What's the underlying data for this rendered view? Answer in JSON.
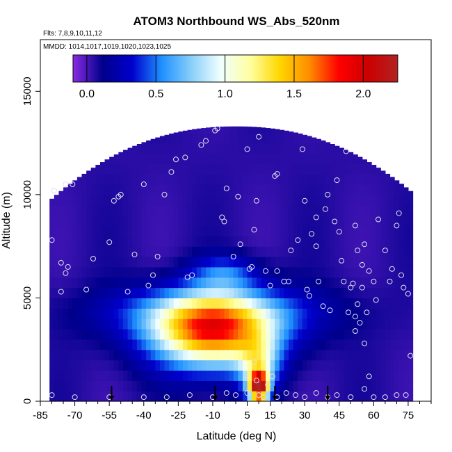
{
  "chart_data": {
    "type": "heatmap",
    "title": "ATOM3 Northbound WS_Abs_520nm",
    "flights_label": "Flts: 7,8,9,10,11,12",
    "dates_label": "MMDD: 1014,1017,1019,1020,1023,1025",
    "xlabel": "Latitude (deg N)",
    "ylabel": "Altitude (m)",
    "xlim": [
      -85,
      85
    ],
    "ylim": [
      0,
      17500
    ],
    "x_ticks": [
      -85,
      -70,
      -55,
      -40,
      -25,
      -10,
      5,
      15,
      30,
      45,
      60,
      75
    ],
    "x_minor_step": 5,
    "y_ticks": [
      0,
      5000,
      10000,
      15000
    ],
    "colorbar": {
      "range": [
        -0.1,
        2.25
      ],
      "ticks": [
        0.0,
        0.5,
        1.0,
        1.5,
        2.0
      ],
      "tick_labels": [
        "0.0",
        "0.5",
        "1.0",
        "1.5",
        "2.0"
      ],
      "colors": [
        "#8A2BE2",
        "#00008B",
        "#0000CD",
        "#1E90FF",
        "#87CEFA",
        "#F0FFFF",
        "#FFFFA0",
        "#FFD700",
        "#FF8C00",
        "#FF0000",
        "#CC0000",
        "#B22222"
      ]
    },
    "background_value": 0.05,
    "plumes": [
      {
        "lat": -10,
        "alt": 3300,
        "sx": 18,
        "sy": 1200,
        "peak": 1.55
      },
      {
        "lat": -10,
        "alt": 4300,
        "sx": 30,
        "sy": 900,
        "peak": 0.55
      },
      {
        "lat": 10,
        "alt": 700,
        "sx": 3,
        "sy": 500,
        "peak": 2.1
      },
      {
        "lat": 10,
        "alt": 1800,
        "sx": 6,
        "sy": 900,
        "peak": 0.7
      },
      {
        "lat": -5,
        "alt": 6200,
        "sx": 10,
        "sy": 600,
        "peak": 0.4
      }
    ],
    "arrows_lat": [
      -54,
      -9,
      17,
      40
    ],
    "observations": [
      [
        -79,
        10200
      ],
      [
        -76,
        6700
      ],
      [
        -74,
        6200
      ],
      [
        -73,
        6500
      ],
      [
        -74,
        10500
      ],
      [
        -71,
        10500
      ],
      [
        -80,
        7800
      ],
      [
        -76,
        5300
      ],
      [
        -65,
        5400
      ],
      [
        -62,
        6900
      ],
      [
        -55,
        7700
      ],
      [
        -53,
        9700
      ],
      [
        -51,
        9900
      ],
      [
        -50,
        10000
      ],
      [
        -47,
        5300
      ],
      [
        -44,
        7100
      ],
      [
        -40,
        10500
      ],
      [
        -38,
        5600
      ],
      [
        -36,
        6100
      ],
      [
        -34,
        7000
      ],
      [
        -31,
        10000
      ],
      [
        -28,
        11100
      ],
      [
        -26,
        11700
      ],
      [
        -22,
        11800
      ],
      [
        -21,
        6000
      ],
      [
        -19,
        6100
      ],
      [
        -15,
        12400
      ],
      [
        -13,
        12600
      ],
      [
        -9,
        13100
      ],
      [
        -8,
        13200
      ],
      [
        -6,
        8900
      ],
      [
        -5,
        8700
      ],
      [
        -4,
        10300
      ],
      [
        -2,
        5200
      ],
      [
        -1,
        7000
      ],
      [
        1,
        9900
      ],
      [
        2,
        7600
      ],
      [
        5,
        12200
      ],
      [
        6,
        6400
      ],
      [
        7,
        6500
      ],
      [
        8,
        8300
      ],
      [
        9,
        9700
      ],
      [
        10,
        12800
      ],
      [
        13,
        6300
      ],
      [
        15,
        5600
      ],
      [
        17,
        10900
      ],
      [
        18,
        11000
      ],
      [
        18,
        6300
      ],
      [
        21,
        5800
      ],
      [
        23,
        5800
      ],
      [
        24,
        7300
      ],
      [
        27,
        7800
      ],
      [
        29,
        12200
      ],
      [
        30,
        9700
      ],
      [
        31,
        5400
      ],
      [
        32,
        5100
      ],
      [
        33,
        8100
      ],
      [
        35,
        8900
      ],
      [
        35,
        7500
      ],
      [
        36,
        5800
      ],
      [
        38,
        4600
      ],
      [
        39,
        9300
      ],
      [
        40,
        10000
      ],
      [
        41,
        4400
      ],
      [
        43,
        8700
      ],
      [
        44,
        10700
      ],
      [
        45,
        8200
      ],
      [
        46,
        6800
      ],
      [
        47,
        5800
      ],
      [
        48,
        12100
      ],
      [
        49,
        4300
      ],
      [
        50,
        5500
      ],
      [
        51,
        5700
      ],
      [
        52,
        3400
      ],
      [
        52,
        4100
      ],
      [
        52,
        8500
      ],
      [
        53,
        7300
      ],
      [
        53,
        4700
      ],
      [
        54,
        3800
      ],
      [
        55,
        5500
      ],
      [
        55,
        6600
      ],
      [
        56,
        7600
      ],
      [
        56,
        2800
      ],
      [
        57,
        4300
      ],
      [
        58,
        6300
      ],
      [
        58,
        1200
      ],
      [
        60,
        5800
      ],
      [
        61,
        4900
      ],
      [
        62,
        8800
      ],
      [
        65,
        7300
      ],
      [
        67,
        5800
      ],
      [
        68,
        6400
      ],
      [
        70,
        8500
      ],
      [
        71,
        9100
      ],
      [
        72,
        6100
      ],
      [
        73,
        5500
      ],
      [
        -80,
        300
      ],
      [
        -70,
        200
      ],
      [
        -55,
        200
      ],
      [
        -40,
        200
      ],
      [
        -30,
        200
      ],
      [
        -20,
        300
      ],
      [
        -10,
        200
      ],
      [
        -4,
        400
      ],
      [
        0,
        300
      ],
      [
        5,
        400
      ],
      [
        8,
        1900
      ],
      [
        9,
        1000
      ],
      [
        10,
        300
      ],
      [
        12,
        200
      ],
      [
        14,
        800
      ],
      [
        16,
        1200
      ],
      [
        18,
        200
      ],
      [
        22,
        400
      ],
      [
        26,
        300
      ],
      [
        30,
        200
      ],
      [
        35,
        400
      ],
      [
        40,
        200
      ],
      [
        44,
        300
      ],
      [
        50,
        200
      ],
      [
        56,
        600
      ],
      [
        60,
        200
      ],
      [
        65,
        200
      ],
      [
        70,
        300
      ],
      [
        74,
        300
      ],
      [
        75,
        5200
      ],
      [
        76,
        2200
      ]
    ]
  }
}
